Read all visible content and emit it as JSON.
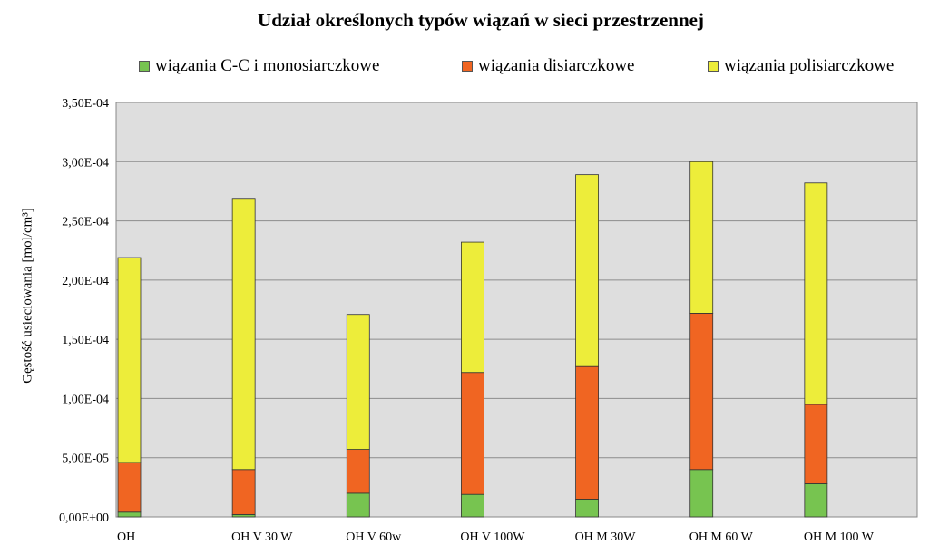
{
  "chart_data": {
    "type": "bar",
    "stacked": true,
    "title": "Udział określonych typów wiązań w sieci przestrzennej",
    "xlabel": "",
    "ylabel": "Gęstość usieciowania [mol/cm³]",
    "ylim": [
      0,
      0.00035
    ],
    "yticks": [
      0,
      5e-05,
      0.0001,
      0.00015,
      0.0002,
      0.00025,
      0.0003,
      0.00035
    ],
    "ytick_labels": [
      "0,00E+00",
      "5,00E-05",
      "1,00E-04",
      "1,50E-04",
      "2,00E-04",
      "2,50E-04",
      "3,00E-04",
      "3,50E-04"
    ],
    "grid": true,
    "legend_position": "top",
    "categories": [
      "OH",
      "OH V 30 W",
      "OH V 60w",
      "OH V 100W",
      "OH M 30W",
      "OH M 60 W",
      "OH M 100 W"
    ],
    "series": [
      {
        "name": "wiązania C-C i monosiarczkowe",
        "color": "#77c450",
        "values": [
          4e-06,
          2e-06,
          2e-05,
          1.9e-05,
          1.5e-05,
          4e-05,
          2.8e-05
        ]
      },
      {
        "name": "wiązania disiarczkowe",
        "color": "#f06522",
        "values": [
          4.2e-05,
          3.8e-05,
          3.7e-05,
          0.000103,
          0.000112,
          0.000132,
          6.7e-05
        ]
      },
      {
        "name": "wiązania polisiarczkowe",
        "color": "#eded3a",
        "values": [
          0.000173,
          0.000229,
          0.000114,
          0.00011,
          0.000162,
          0.000128,
          0.000187
        ]
      }
    ]
  }
}
